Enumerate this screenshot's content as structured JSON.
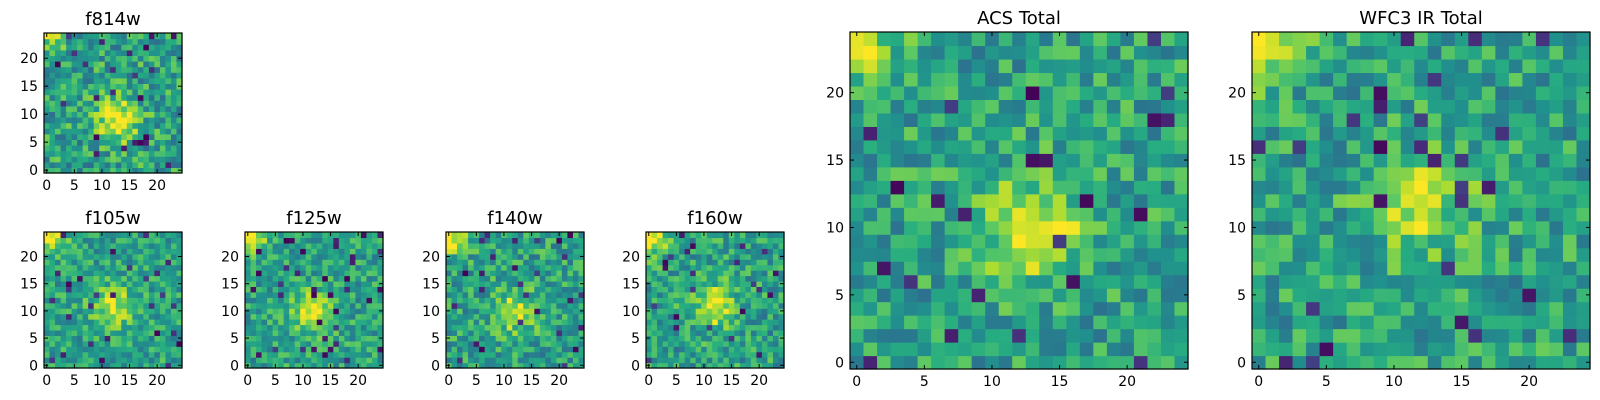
{
  "chart_data": [
    {
      "type": "heatmap",
      "title": "f814w",
      "grid_size": 25,
      "xticks": [
        0,
        5,
        10,
        15,
        20
      ],
      "yticks": [
        0,
        5,
        10,
        15,
        20
      ],
      "xlim": [
        0,
        24
      ],
      "ylim": [
        0,
        24
      ],
      "colormap": "viridis",
      "source_center": [
        13,
        9
      ],
      "source_strength": 0.45,
      "noise": 0.22,
      "corner_glow": 0.3
    },
    {
      "type": "heatmap",
      "title": "f105w",
      "grid_size": 25,
      "xticks": [
        0,
        5,
        10,
        15,
        20
      ],
      "yticks": [
        0,
        5,
        10,
        15,
        20
      ],
      "xlim": [
        0,
        24
      ],
      "ylim": [
        0,
        24
      ],
      "colormap": "viridis",
      "source_center": [
        12,
        11
      ],
      "source_strength": 0.35,
      "noise": 0.18,
      "corner_glow": 0.45
    },
    {
      "type": "heatmap",
      "title": "f125w",
      "grid_size": 25,
      "xticks": [
        0,
        5,
        10,
        15,
        20
      ],
      "yticks": [
        0,
        5,
        10,
        15,
        20
      ],
      "xlim": [
        0,
        24
      ],
      "ylim": [
        0,
        24
      ],
      "colormap": "viridis",
      "source_center": [
        12,
        10
      ],
      "source_strength": 0.4,
      "noise": 0.18,
      "corner_glow": 0.45
    },
    {
      "type": "heatmap",
      "title": "f140w",
      "grid_size": 25,
      "xticks": [
        0,
        5,
        10,
        15,
        20
      ],
      "yticks": [
        0,
        5,
        10,
        15,
        20
      ],
      "xlim": [
        0,
        24
      ],
      "ylim": [
        0,
        24
      ],
      "colormap": "viridis",
      "source_center": [
        12,
        10
      ],
      "source_strength": 0.35,
      "noise": 0.2,
      "corner_glow": 0.5
    },
    {
      "type": "heatmap",
      "title": "f160w",
      "grid_size": 25,
      "xticks": [
        0,
        5,
        10,
        15,
        20
      ],
      "yticks": [
        0,
        5,
        10,
        15,
        20
      ],
      "xlim": [
        0,
        24
      ],
      "ylim": [
        0,
        24
      ],
      "colormap": "viridis",
      "source_center": [
        12,
        11
      ],
      "source_strength": 0.4,
      "noise": 0.2,
      "corner_glow": 0.55
    },
    {
      "type": "heatmap",
      "title": "ACS Total",
      "grid_size": 25,
      "xticks": [
        0,
        5,
        10,
        15,
        20
      ],
      "yticks": [
        0,
        5,
        10,
        15,
        20
      ],
      "xlim": [
        0,
        24
      ],
      "ylim": [
        0,
        24
      ],
      "colormap": "viridis",
      "source_center": [
        13,
        10
      ],
      "source_strength": 0.4,
      "noise": 0.2,
      "corner_glow": 0.35
    },
    {
      "type": "heatmap",
      "title": "WFC3 IR Total",
      "grid_size": 25,
      "xticks": [
        0,
        5,
        10,
        15,
        20
      ],
      "yticks": [
        0,
        5,
        10,
        15,
        20
      ],
      "xlim": [
        0,
        24
      ],
      "ylim": [
        0,
        24
      ],
      "colormap": "viridis",
      "source_center": [
        12,
        12
      ],
      "source_strength": 0.3,
      "noise": 0.2,
      "corner_glow": 0.35
    }
  ]
}
